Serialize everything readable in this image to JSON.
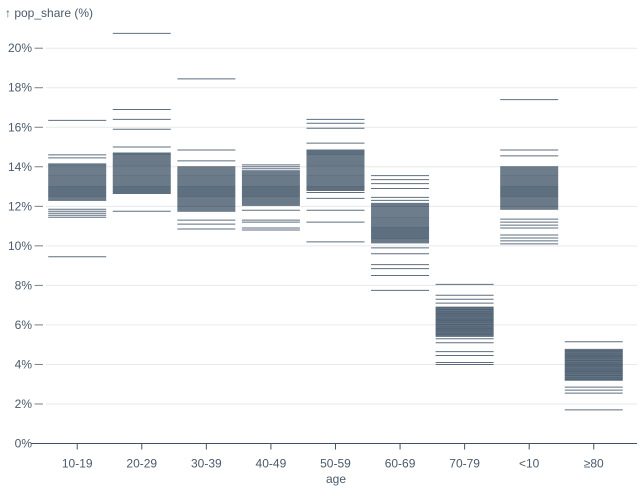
{
  "title": "↑ pop_share (%)",
  "colors": {
    "tick": "#3a4f63",
    "grid": "#e6e9ec",
    "axis_text": "#4a5a6c",
    "axis_line": "#3f5265",
    "dash": "#74808b",
    "background": "#ffffff"
  },
  "y_axis": {
    "title": "↑ pop_share (%)",
    "ticks": [
      {
        "value": 0,
        "label": "0%"
      },
      {
        "value": 2,
        "label": "2%"
      },
      {
        "value": 4,
        "label": "4%"
      },
      {
        "value": 6,
        "label": "6%"
      },
      {
        "value": 8,
        "label": "8%"
      },
      {
        "value": 10,
        "label": "10%"
      },
      {
        "value": 12,
        "label": "12%"
      },
      {
        "value": 14,
        "label": "14%"
      },
      {
        "value": 16,
        "label": "16%"
      },
      {
        "value": 18,
        "label": "18%"
      },
      {
        "value": 20,
        "label": "20%"
      }
    ]
  },
  "x_axis": {
    "title": "age",
    "categories": [
      "10-19",
      "20-29",
      "30-39",
      "40-49",
      "50-59",
      "60-69",
      "70-79",
      "<10",
      "≥80"
    ]
  },
  "chart_data": {
    "type": "tick",
    "title": "Population share (%) by age group — one horizontal tick per state",
    "xlabel": "age",
    "ylabel": "pop_share (%)",
    "ylim": [
      0,
      21
    ],
    "grid": true,
    "legend": false,
    "categories": [
      "10-19",
      "20-29",
      "30-39",
      "40-49",
      "50-59",
      "60-69",
      "70-79",
      "<10",
      "≥80"
    ],
    "series": [
      {
        "age": "10-19",
        "values": [
          16.35,
          14.6,
          14.45,
          14.15,
          14.1,
          14.05,
          14,
          13.95,
          13.9,
          13.85,
          13.8,
          13.75,
          13.7,
          13.65,
          13.6,
          13.55,
          13.5,
          13.45,
          13.4,
          13.35,
          13.3,
          13.25,
          13.2,
          13.15,
          13.1,
          13.05,
          13,
          12.95,
          12.9,
          12.85,
          12.8,
          12.75,
          12.7,
          12.65,
          12.6,
          12.55,
          12.5,
          12.45,
          12.4,
          12.35,
          12.3,
          11.85,
          11.75,
          11.65,
          11.55,
          11.45,
          9.45
        ]
      },
      {
        "age": "20-29",
        "values": [
          20.75,
          16.9,
          16.4,
          15.9,
          15,
          14.7,
          14.65,
          14.6,
          14.55,
          14.5,
          14.45,
          14.4,
          14.35,
          14.3,
          14.25,
          14.2,
          14.15,
          14.1,
          14.05,
          14,
          13.95,
          13.9,
          13.85,
          13.8,
          13.75,
          13.7,
          13.65,
          13.6,
          13.55,
          13.5,
          13.45,
          13.4,
          13.35,
          13.3,
          13.25,
          13.2,
          13.15,
          13.1,
          13.05,
          13,
          12.95,
          12.9,
          12.85,
          12.8,
          12.75,
          12.7,
          12.65,
          11.75
        ]
      },
      {
        "age": "30-39",
        "values": [
          18.45,
          14.85,
          14.3,
          14,
          13.95,
          13.9,
          13.85,
          13.8,
          13.75,
          13.7,
          13.65,
          13.6,
          13.55,
          13.5,
          13.45,
          13.4,
          13.35,
          13.3,
          13.25,
          13.2,
          13.15,
          13.1,
          13.05,
          13,
          12.95,
          12.9,
          12.85,
          12.8,
          12.75,
          12.7,
          12.65,
          12.6,
          12.55,
          12.5,
          12.45,
          12.4,
          12.35,
          12.3,
          12.25,
          12.2,
          12.15,
          12.1,
          12.05,
          12,
          11.95,
          11.9,
          11.85,
          11.8,
          11.75,
          11.3,
          11.1,
          10.85
        ]
      },
      {
        "age": "40-49",
        "values": [
          14.1,
          14,
          13.9,
          13.8,
          13.75,
          13.7,
          13.65,
          13.6,
          13.55,
          13.5,
          13.45,
          13.4,
          13.35,
          13.3,
          13.25,
          13.2,
          13.15,
          13.1,
          13.05,
          13,
          12.95,
          12.9,
          12.85,
          12.8,
          12.75,
          12.7,
          12.65,
          12.6,
          12.55,
          12.5,
          12.45,
          12.4,
          12.35,
          12.3,
          12.25,
          12.2,
          12.15,
          12.1,
          12.05,
          11.8,
          11.3,
          11.2,
          10.9,
          10.8
        ]
      },
      {
        "age": "50-59",
        "values": [
          16.4,
          16.2,
          15.95,
          15.2,
          14.85,
          14.8,
          14.75,
          14.7,
          14.65,
          14.6,
          14.55,
          14.5,
          14.45,
          14.4,
          14.35,
          14.3,
          14.25,
          14.2,
          14.15,
          14.1,
          14.05,
          14,
          13.95,
          13.9,
          13.85,
          13.8,
          13.75,
          13.7,
          13.65,
          13.6,
          13.55,
          13.5,
          13.45,
          13.4,
          13.35,
          13.3,
          13.25,
          13.2,
          13.15,
          13.1,
          13.05,
          13,
          12.95,
          12.9,
          12.85,
          12.8,
          12.7,
          12.4,
          11.8,
          11.2,
          10.2
        ]
      },
      {
        "age": "60-69",
        "values": [
          13.55,
          13.35,
          13.15,
          12.9,
          12.45,
          12.3,
          12.15,
          12.1,
          12.05,
          12,
          11.95,
          11.9,
          11.85,
          11.8,
          11.75,
          11.7,
          11.65,
          11.6,
          11.55,
          11.5,
          11.45,
          11.4,
          11.35,
          11.3,
          11.25,
          11.2,
          11.15,
          11.1,
          11.05,
          11,
          10.95,
          10.9,
          10.85,
          10.8,
          10.75,
          10.7,
          10.65,
          10.6,
          10.55,
          10.5,
          10.45,
          10.4,
          10.35,
          10.3,
          10.25,
          10.2,
          10.15,
          9.9,
          9.6,
          9.05,
          8.85,
          8.5,
          7.75
        ]
      },
      {
        "age": "70-79",
        "values": [
          8.05,
          7.5,
          7.3,
          7.1,
          6.9,
          6.86,
          6.82,
          6.78,
          6.74,
          6.7,
          6.66,
          6.62,
          6.58,
          6.54,
          6.5,
          6.46,
          6.42,
          6.38,
          6.34,
          6.3,
          6.26,
          6.22,
          6.18,
          6.14,
          6.1,
          6.06,
          6.02,
          5.98,
          5.94,
          5.9,
          5.86,
          5.82,
          5.78,
          5.74,
          5.7,
          5.66,
          5.62,
          5.58,
          5.54,
          5.5,
          5.46,
          5.42,
          5.3,
          5.1,
          4.65,
          4.45,
          4.1,
          4
        ]
      },
      {
        "age": "<10",
        "values": [
          17.4,
          14.85,
          14.55,
          14,
          13.95,
          13.9,
          13.85,
          13.8,
          13.75,
          13.7,
          13.65,
          13.6,
          13.55,
          13.5,
          13.45,
          13.4,
          13.35,
          13.3,
          13.25,
          13.2,
          13.15,
          13.1,
          13.05,
          13,
          12.95,
          12.9,
          12.85,
          12.8,
          12.75,
          12.7,
          12.65,
          12.6,
          12.55,
          12.5,
          12.45,
          12.4,
          12.35,
          12.3,
          12.25,
          12.2,
          12.15,
          12.1,
          12.05,
          12,
          11.95,
          11.9,
          11.85,
          11.35,
          11.2,
          11.05,
          10.9,
          10.55,
          10.4,
          10.25,
          10.1
        ]
      },
      {
        "age": "≥80",
        "values": [
          5.15,
          4.76,
          4.72,
          4.68,
          4.64,
          4.6,
          4.56,
          4.52,
          4.48,
          4.44,
          4.4,
          4.36,
          4.32,
          4.28,
          4.24,
          4.2,
          4.16,
          4.12,
          4.08,
          4.04,
          4,
          3.96,
          3.92,
          3.88,
          3.84,
          3.8,
          3.76,
          3.72,
          3.68,
          3.64,
          3.6,
          3.56,
          3.52,
          3.48,
          3.44,
          3.4,
          3.36,
          3.32,
          3.28,
          3.24,
          3.2,
          2.85,
          2.7,
          2.55,
          1.7
        ]
      }
    ]
  }
}
